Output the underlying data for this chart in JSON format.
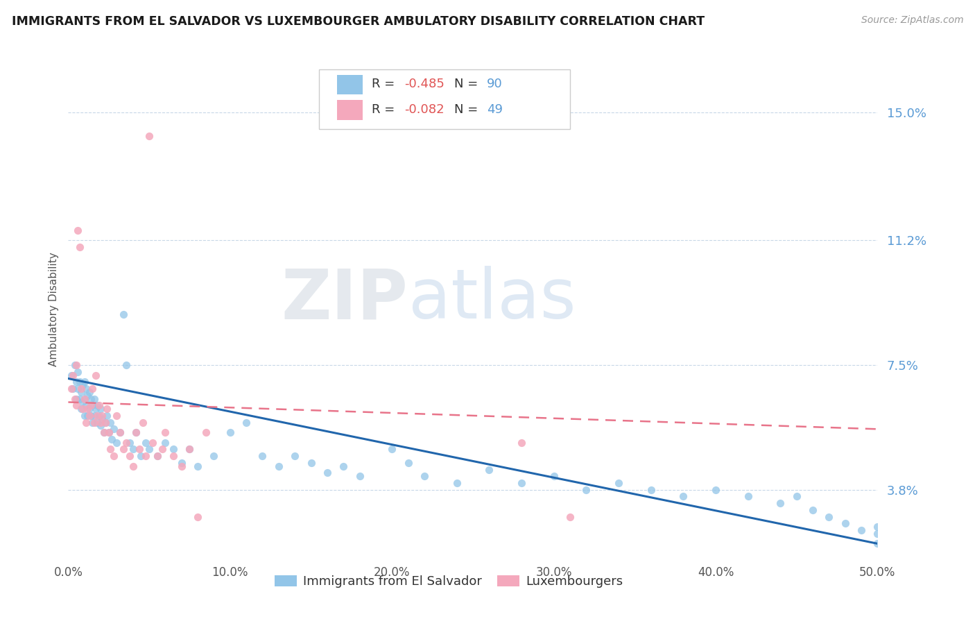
{
  "title": "IMMIGRANTS FROM EL SALVADOR VS LUXEMBOURGER AMBULATORY DISABILITY CORRELATION CHART",
  "source": "Source: ZipAtlas.com",
  "ylabel": "Ambulatory Disability",
  "blue_label": "Immigrants from El Salvador",
  "pink_label": "Luxembourgers",
  "blue_R": -0.485,
  "blue_N": 90,
  "pink_R": -0.082,
  "pink_N": 49,
  "blue_color": "#92c5e8",
  "pink_color": "#f4a8bc",
  "blue_line_color": "#2166ac",
  "pink_line_color": "#e8748a",
  "xlim": [
    0.0,
    0.5
  ],
  "ylim": [
    0.018,
    0.165
  ],
  "yticks": [
    0.038,
    0.075,
    0.112,
    0.15
  ],
  "ytick_labels": [
    "3.8%",
    "7.5%",
    "11.2%",
    "15.0%"
  ],
  "xticks": [
    0.0,
    0.1,
    0.2,
    0.3,
    0.4,
    0.5
  ],
  "xtick_labels": [
    "0.0%",
    "10.0%",
    "20.0%",
    "30.0%",
    "40.0%",
    "50.0%"
  ],
  "grid_color": "#c8d8e8",
  "background_color": "#ffffff",
  "blue_trend_x0": 0.0,
  "blue_trend_y0": 0.071,
  "blue_trend_x1": 0.5,
  "blue_trend_y1": 0.022,
  "pink_trend_x0": 0.0,
  "pink_trend_y0": 0.064,
  "pink_trend_x1": 0.5,
  "pink_trend_y1": 0.056,
  "blue_scatter_x": [
    0.002,
    0.003,
    0.004,
    0.005,
    0.005,
    0.006,
    0.006,
    0.007,
    0.007,
    0.008,
    0.008,
    0.009,
    0.009,
    0.01,
    0.01,
    0.01,
    0.011,
    0.011,
    0.012,
    0.012,
    0.013,
    0.013,
    0.014,
    0.014,
    0.015,
    0.015,
    0.016,
    0.016,
    0.017,
    0.018,
    0.018,
    0.019,
    0.02,
    0.02,
    0.021,
    0.022,
    0.023,
    0.024,
    0.025,
    0.026,
    0.027,
    0.028,
    0.03,
    0.032,
    0.034,
    0.036,
    0.038,
    0.04,
    0.042,
    0.045,
    0.048,
    0.05,
    0.055,
    0.06,
    0.065,
    0.07,
    0.075,
    0.08,
    0.09,
    0.1,
    0.11,
    0.12,
    0.13,
    0.14,
    0.15,
    0.16,
    0.17,
    0.18,
    0.2,
    0.21,
    0.22,
    0.24,
    0.26,
    0.28,
    0.3,
    0.32,
    0.34,
    0.36,
    0.38,
    0.4,
    0.42,
    0.44,
    0.45,
    0.46,
    0.47,
    0.48,
    0.49,
    0.5,
    0.5,
    0.5
  ],
  "blue_scatter_y": [
    0.072,
    0.068,
    0.075,
    0.065,
    0.07,
    0.068,
    0.073,
    0.065,
    0.07,
    0.062,
    0.067,
    0.064,
    0.069,
    0.06,
    0.065,
    0.07,
    0.063,
    0.068,
    0.06,
    0.066,
    0.062,
    0.067,
    0.06,
    0.065,
    0.058,
    0.063,
    0.06,
    0.065,
    0.062,
    0.058,
    0.063,
    0.06,
    0.057,
    0.062,
    0.059,
    0.055,
    0.058,
    0.06,
    0.055,
    0.058,
    0.053,
    0.056,
    0.052,
    0.055,
    0.09,
    0.075,
    0.052,
    0.05,
    0.055,
    0.048,
    0.052,
    0.05,
    0.048,
    0.052,
    0.05,
    0.046,
    0.05,
    0.045,
    0.048,
    0.055,
    0.058,
    0.048,
    0.045,
    0.048,
    0.046,
    0.043,
    0.045,
    0.042,
    0.05,
    0.046,
    0.042,
    0.04,
    0.044,
    0.04,
    0.042,
    0.038,
    0.04,
    0.038,
    0.036,
    0.038,
    0.036,
    0.034,
    0.036,
    0.032,
    0.03,
    0.028,
    0.026,
    0.025,
    0.027,
    0.022
  ],
  "pink_scatter_x": [
    0.002,
    0.003,
    0.004,
    0.005,
    0.005,
    0.006,
    0.007,
    0.008,
    0.009,
    0.01,
    0.011,
    0.012,
    0.013,
    0.014,
    0.015,
    0.016,
    0.017,
    0.018,
    0.019,
    0.02,
    0.021,
    0.022,
    0.023,
    0.024,
    0.025,
    0.026,
    0.028,
    0.03,
    0.032,
    0.034,
    0.036,
    0.038,
    0.04,
    0.042,
    0.044,
    0.046,
    0.048,
    0.05,
    0.052,
    0.055,
    0.058,
    0.06,
    0.065,
    0.07,
    0.075,
    0.08,
    0.085,
    0.28,
    0.31
  ],
  "pink_scatter_y": [
    0.068,
    0.072,
    0.065,
    0.075,
    0.063,
    0.115,
    0.11,
    0.068,
    0.062,
    0.065,
    0.058,
    0.062,
    0.06,
    0.063,
    0.068,
    0.058,
    0.072,
    0.06,
    0.063,
    0.058,
    0.06,
    0.055,
    0.058,
    0.062,
    0.055,
    0.05,
    0.048,
    0.06,
    0.055,
    0.05,
    0.052,
    0.048,
    0.045,
    0.055,
    0.05,
    0.058,
    0.048,
    0.143,
    0.052,
    0.048,
    0.05,
    0.055,
    0.048,
    0.045,
    0.05,
    0.03,
    0.055,
    0.052,
    0.03
  ]
}
